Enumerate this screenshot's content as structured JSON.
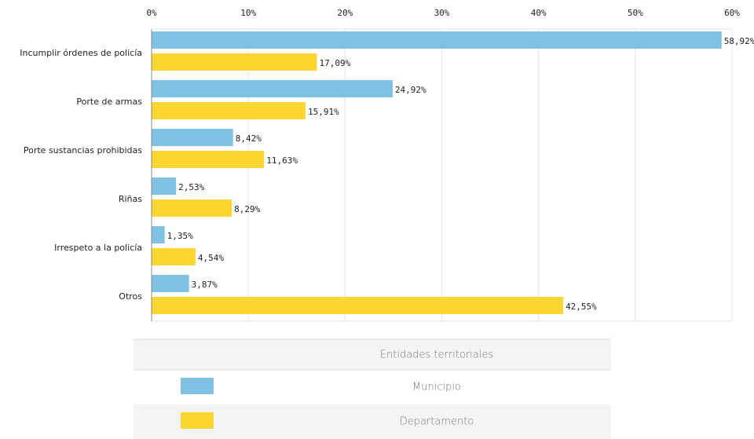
{
  "chart_data": {
    "type": "bar",
    "orientation": "horizontal",
    "categories": [
      "Incumplir órdenes de policía",
      "Porte de armas",
      "Porte sustancias prohibidas",
      "Riñas",
      "Irrespeto a la policía",
      "Otros"
    ],
    "series": [
      {
        "name": "Municipio",
        "color": "#7fc1e3",
        "values": [
          58.92,
          24.92,
          8.42,
          2.53,
          1.35,
          3.87
        ],
        "value_labels": [
          "58,92%",
          "24,92%",
          "8,42%",
          "2,53%",
          "1,35%",
          "3,87%"
        ]
      },
      {
        "name": "Departamento",
        "color": "#fcd630",
        "values": [
          17.09,
          15.91,
          11.63,
          8.29,
          4.54,
          42.55
        ],
        "value_labels": [
          "17,09%",
          "15,91%",
          "11,63%",
          "8,29%",
          "4,54%",
          "42,55%"
        ]
      }
    ],
    "xlim": [
      0,
      60
    ],
    "xticks": [
      {
        "value": 0,
        "label": "0%"
      },
      {
        "value": 10,
        "label": "10%"
      },
      {
        "value": 20,
        "label": "20%"
      },
      {
        "value": 30,
        "label": "30%"
      },
      {
        "value": 40,
        "label": "40%"
      },
      {
        "value": 50,
        "label": "50%"
      },
      {
        "value": 60,
        "label": "60%"
      }
    ],
    "grid": true,
    "legend_title": "Entidades territoriales"
  }
}
